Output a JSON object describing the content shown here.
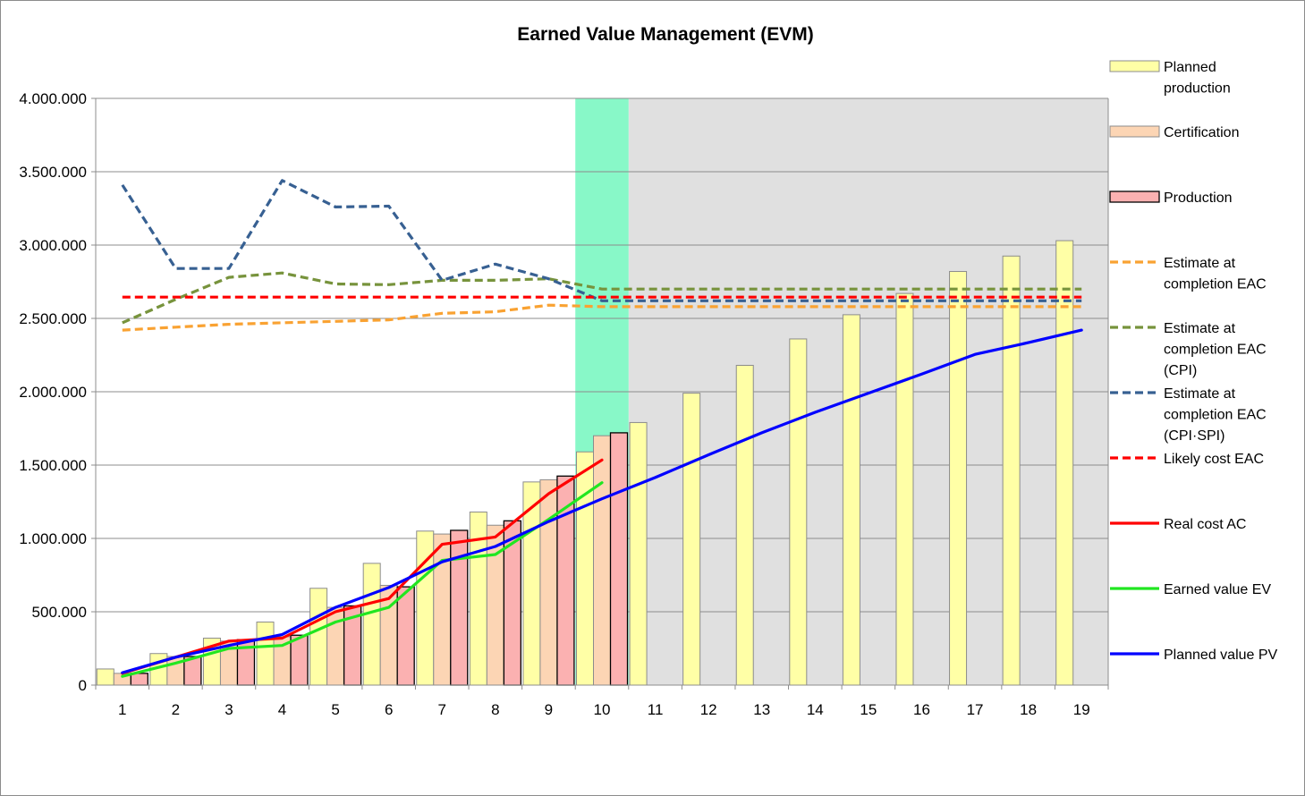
{
  "chart_data": {
    "type": "bar",
    "title": "Earned Value Management (EVM)",
    "xlabel": "",
    "ylabel": "",
    "ylim": [
      0,
      4000000
    ],
    "yticks": [
      0,
      500000,
      1000000,
      1500000,
      2000000,
      2500000,
      3000000,
      3500000,
      4000000
    ],
    "ytick_labels": [
      "0",
      "500.000",
      "1.000.000",
      "1.500.000",
      "2.000.000",
      "2.500.000",
      "3.000.000",
      "3.500.000",
      "4.000.000"
    ],
    "categories": [
      "1",
      "2",
      "3",
      "4",
      "5",
      "6",
      "7",
      "8",
      "9",
      "10",
      "11",
      "12",
      "13",
      "14",
      "15",
      "16",
      "17",
      "18",
      "19"
    ],
    "current_period": 10,
    "current_period_color": "#88f8c8",
    "future_shade_color": "#e0e0e0",
    "bar_series": [
      {
        "name": "Planned production",
        "color": "#ffffa6",
        "edge": "#8c8c8c",
        "values": [
          110000,
          215000,
          320000,
          430000,
          660000,
          830000,
          1050000,
          1180000,
          1385000,
          1590000,
          1790000,
          1990000,
          2180000,
          2360000,
          2525000,
          2670000,
          2820000,
          2925000,
          3030000
        ]
      },
      {
        "name": "Certification",
        "color": "#fcd5b4",
        "edge": "#8c8c8c",
        "values": [
          80000,
          195000,
          300000,
          330000,
          530000,
          680000,
          1030000,
          1090000,
          1400000,
          1700000,
          null,
          null,
          null,
          null,
          null,
          null,
          null,
          null,
          null
        ]
      },
      {
        "name": "Production",
        "color": "#fbb1b1",
        "edge": "#000000",
        "values": [
          80000,
          195000,
          310000,
          340000,
          540000,
          670000,
          1055000,
          1120000,
          1425000,
          1720000,
          null,
          null,
          null,
          null,
          null,
          null,
          null,
          null,
          null
        ]
      }
    ],
    "line_series": [
      {
        "name": "Estimate at completion EAC",
        "color": "#f9a232",
        "dashed": true,
        "values": [
          2420000,
          2440000,
          2460000,
          2470000,
          2480000,
          2490000,
          2535000,
          2545000,
          2590000,
          2580000,
          2580000,
          2580000,
          2580000,
          2580000,
          2580000,
          2580000,
          2580000,
          2580000,
          2580000
        ]
      },
      {
        "name": "Estimate at completion EAC (CPI)",
        "color": "#77933c",
        "dashed": true,
        "values": [
          2470000,
          2630000,
          2780000,
          2810000,
          2735000,
          2730000,
          2760000,
          2760000,
          2770000,
          2700000,
          2700000,
          2700000,
          2700000,
          2700000,
          2700000,
          2700000,
          2700000,
          2700000,
          2700000
        ]
      },
      {
        "name": "Estimate at completion EAC (CPI·SPI)",
        "color": "#376092",
        "dashed": true,
        "values": [
          3410000,
          2840000,
          2840000,
          3440000,
          3260000,
          3265000,
          2760000,
          2870000,
          2770000,
          2620000,
          2620000,
          2620000,
          2620000,
          2620000,
          2620000,
          2620000,
          2620000,
          2620000,
          2620000
        ]
      },
      {
        "name": "Likely cost EAC",
        "color": "#ff0000",
        "dashed": true,
        "values": [
          2645000,
          2645000,
          2645000,
          2645000,
          2645000,
          2645000,
          2645000,
          2645000,
          2645000,
          2645000,
          2645000,
          2645000,
          2645000,
          2645000,
          2645000,
          2645000,
          2645000,
          2645000,
          2645000
        ]
      },
      {
        "name": "Real cost AC",
        "color": "#ff0000",
        "dashed": false,
        "values": [
          80000,
          190000,
          300000,
          320000,
          500000,
          590000,
          960000,
          1010000,
          1305000,
          1535000,
          null,
          null,
          null,
          null,
          null,
          null,
          null,
          null,
          null
        ]
      },
      {
        "name": "Earned value EV",
        "color": "#21e621",
        "dashed": false,
        "values": [
          60000,
          150000,
          250000,
          270000,
          430000,
          530000,
          850000,
          890000,
          1130000,
          1380000,
          null,
          null,
          null,
          null,
          null,
          null,
          null,
          null,
          null
        ]
      },
      {
        "name": "Planned value PV",
        "color": "#0000ff",
        "dashed": false,
        "values": [
          85000,
          190000,
          270000,
          345000,
          530000,
          665000,
          840000,
          945000,
          1115000,
          1270000,
          1415000,
          1570000,
          1720000,
          1860000,
          1990000,
          2120000,
          2255000,
          2335000,
          2420000
        ]
      }
    ],
    "legend": [
      {
        "kind": "bar",
        "series": "Planned production",
        "lines": [
          "Planned",
          "production"
        ]
      },
      {
        "kind": "bar",
        "series": "Certification",
        "lines": [
          "Certification"
        ]
      },
      {
        "kind": "bar",
        "series": "Production",
        "lines": [
          "Production"
        ]
      },
      {
        "kind": "line",
        "series": "Estimate at completion EAC",
        "lines": [
          "Estimate at",
          "completion EAC"
        ]
      },
      {
        "kind": "line",
        "series": "Estimate at completion EAC (CPI)",
        "lines": [
          "Estimate at",
          "completion EAC",
          "(CPI)"
        ]
      },
      {
        "kind": "line",
        "series": "Estimate at completion EAC (CPI·SPI)",
        "lines": [
          "Estimate at",
          "completion EAC",
          "(CPI·SPI)"
        ]
      },
      {
        "kind": "line",
        "series": "Likely cost EAC",
        "lines": [
          "Likely cost EAC"
        ]
      },
      {
        "kind": "line",
        "series": "Real cost AC",
        "lines": [
          "Real cost AC"
        ]
      },
      {
        "kind": "line",
        "series": "Earned value EV",
        "lines": [
          "Earned value EV"
        ]
      },
      {
        "kind": "line",
        "series": "Planned value PV",
        "lines": [
          "Planned value PV"
        ]
      }
    ],
    "legend_position": "right",
    "grid": true
  }
}
